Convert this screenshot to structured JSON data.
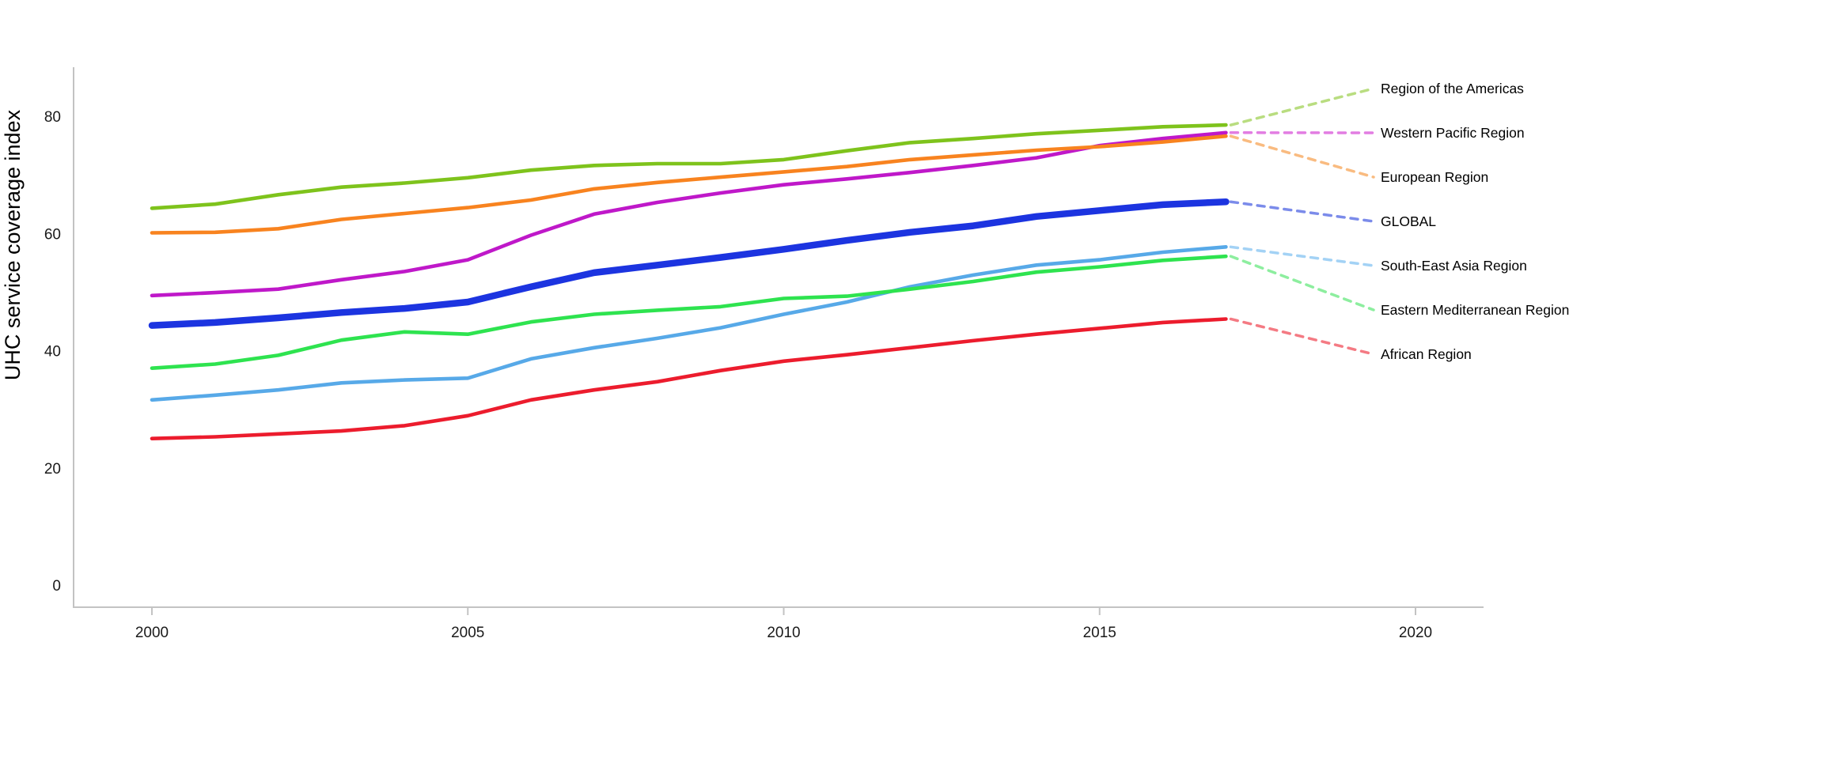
{
  "chart_data": {
    "type": "line",
    "title": "",
    "xlabel": "",
    "ylabel": "UHC service coverage index",
    "x": [
      2000,
      2001,
      2002,
      2003,
      2004,
      2005,
      2006,
      2007,
      2008,
      2009,
      2010,
      2011,
      2012,
      2013,
      2014,
      2015,
      2016,
      2017
    ],
    "x_ticks": [
      "2000",
      "2005",
      "2010",
      "2015",
      "2020"
    ],
    "x_tick_values": [
      2000,
      2005,
      2010,
      2015,
      2020
    ],
    "y_ticks": [
      "0",
      "20",
      "40",
      "60",
      "80"
    ],
    "y_tick_values": [
      0,
      20,
      40,
      60,
      80
    ],
    "xlim": [
      1998.8,
      2024.3
    ],
    "ylim": [
      0,
      92
    ],
    "grid": false,
    "legend_position": "right-leader-labels",
    "axis_color": "#c3c3c3",
    "tick_label_color": "#1a1a1a",
    "label_color": "#000000",
    "series": [
      {
        "name": "Region of the Americas",
        "color": "#7ec31c",
        "leader_color": "#b9dd80",
        "line_width": 4.6,
        "values": [
          64.3,
          65.0,
          66.6,
          67.9,
          68.6,
          69.5,
          70.8,
          71.6,
          71.9,
          71.9,
          72.6,
          74.1,
          75.5,
          76.2,
          77.0,
          77.6,
          78.2,
          78.5
        ]
      },
      {
        "name": "Western Pacific Region",
        "color": "#bf18c9",
        "leader_color": "#e27de2",
        "line_width": 4.6,
        "values": [
          49.4,
          49.9,
          50.5,
          52.1,
          53.5,
          55.5,
          59.7,
          63.3,
          65.3,
          66.9,
          68.3,
          69.3,
          70.4,
          71.6,
          72.9,
          75.0,
          76.2,
          77.2
        ]
      },
      {
        "name": "European Region",
        "color": "#f8831f",
        "leader_color": "#f9bb80",
        "line_width": 4.6,
        "values": [
          60.1,
          60.2,
          60.8,
          62.4,
          63.4,
          64.4,
          65.7,
          67.6,
          68.7,
          69.6,
          70.5,
          71.4,
          72.6,
          73.4,
          74.2,
          74.8,
          75.6,
          76.6
        ]
      },
      {
        "name": "GLOBAL",
        "color": "#1c34e0",
        "leader_color": "#7b8bea",
        "line_width": 8.5,
        "values": [
          44.3,
          44.8,
          45.6,
          46.5,
          47.2,
          48.3,
          50.9,
          53.3,
          54.6,
          55.9,
          57.3,
          58.8,
          60.2,
          61.3,
          62.9,
          63.9,
          64.9,
          65.4
        ]
      },
      {
        "name": "South-East Asia Region",
        "color": "#57a9e8",
        "leader_color": "#a3d2f5",
        "line_width": 4.6,
        "values": [
          31.6,
          32.4,
          33.3,
          34.5,
          35.0,
          35.3,
          38.6,
          40.5,
          42.1,
          43.9,
          46.2,
          48.3,
          50.9,
          52.9,
          54.6,
          55.5,
          56.8,
          57.7
        ]
      },
      {
        "name": "Eastern Mediterranean Region",
        "color": "#2ee34f",
        "leader_color": "#8dee9f",
        "line_width": 4.6,
        "values": [
          37.0,
          37.7,
          39.2,
          41.8,
          43.2,
          42.8,
          44.9,
          46.2,
          46.9,
          47.5,
          48.9,
          49.3,
          50.5,
          51.8,
          53.4,
          54.3,
          55.4,
          56.1
        ]
      },
      {
        "name": "African Region",
        "color": "#ec1c2d",
        "leader_color": "#f47a83",
        "line_width": 4.6,
        "values": [
          25.0,
          25.3,
          25.8,
          26.3,
          27.2,
          28.9,
          31.6,
          33.3,
          34.7,
          36.6,
          38.2,
          39.3,
          40.5,
          41.7,
          42.8,
          43.8,
          44.8,
          45.4
        ]
      }
    ]
  }
}
